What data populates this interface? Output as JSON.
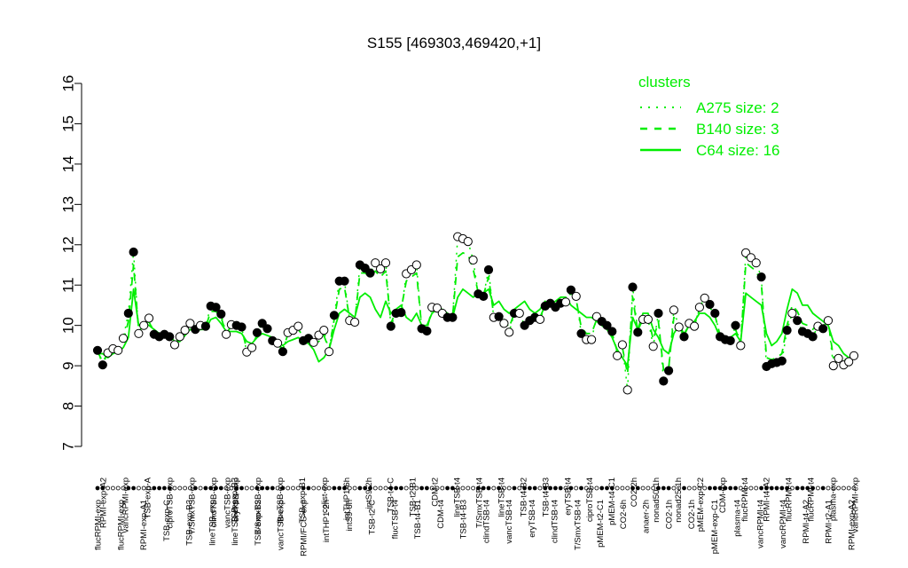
{
  "chart_data": {
    "type": "line",
    "title": "S155 [469303,469420,+1]",
    "xlabel": "",
    "ylabel": "",
    "ylim": [
      7,
      16
    ],
    "yticks": [
      7,
      8,
      9,
      10,
      11,
      12,
      13,
      14,
      15,
      16
    ],
    "grid": false,
    "legend_position": "top-right",
    "legend": {
      "title": "clusters",
      "color": "#00ee00",
      "entries": [
        {
          "label": "A275 size: 2",
          "style": "dotted"
        },
        {
          "label": "B140 size: 3",
          "style": "dashed"
        },
        {
          "label": "C64 size: 16",
          "style": "solid"
        }
      ]
    },
    "x_labels_top": [
      "RPMI-exp-A2",
      "vancRPMI-exp",
      "TSB-exp-A",
      "ciproTSB-exp",
      "T/SmxTSB-exp",
      "clindTSB-exp",
      "eryTSB-exp",
      "T/SmxTSB-exp",
      "flucTSB-exp",
      "TSB-exp-B1",
      "colist-exp",
      "intTHP1-6h",
      "intS9-2h",
      "TSB-t4-C",
      "TSB-t2-B1",
      "CDM-t2",
      "lineTSB-t4",
      "T/SmxTSB-t4",
      "lineTSB-t4",
      "TSB-t4-B2",
      "TSB-t4-B3",
      "eryTSB-t4",
      "ciproTSB-t4",
      "pMEM-t4-C1",
      "CO2-2h",
      "nonad50-1h",
      "nonad25-1h",
      "pMEM-exp-C2",
      "CDM-exp",
      "flucRPMI-t4",
      "RPMI-t4-A2",
      "flucRPMI-t4",
      "flucRPMI-t4",
      "plasma-exp",
      "vancRPMI-exp"
    ],
    "x_labels_bottom": [
      "flucRPMI-exp",
      "flucRPMI-exp",
      "RPMI-exp-A1",
      "TSB-exp-C",
      "TSB-exp-B3",
      "lineTSB-exp",
      "lineTSB-exp",
      "TSB-exp-B2",
      "vancTSB-exp",
      "RPMI/FCS-exp",
      "intTHP1-2h",
      "intS9-6h",
      "TSB-t2-C",
      "flucTSB-t4",
      "TSB-t4-B1",
      "CDM-t4",
      "TSB-t4-B3",
      "clindTSB-t4",
      "vancTSB-t4",
      "eryTSB-t4",
      "clindTSB-t4",
      "T/SmxTSB-t4",
      "pMEM-t2-C1",
      "CO2-6h",
      "anaer-2h",
      "CO2-1h",
      "CO2-1h",
      "pMEM-exp-C1",
      "plasma-t4",
      "vancRPMI-t4",
      "vancRPMI-t4",
      "RPMI-t4-A2",
      "RPMI-t2-A1",
      "RPMI-exp-A2"
    ],
    "x_labels_extra": [
      "vancTSB-exp",
      "TSB-exp-B3"
    ],
    "points_y": [
      9.38,
      9.02,
      9.32,
      9.42,
      9.38,
      9.68,
      10.3,
      11.82,
      9.8,
      10.0,
      10.18,
      9.78,
      9.72,
      9.78,
      9.72,
      9.52,
      9.72,
      9.88,
      10.05,
      9.9,
      10.0,
      9.98,
      10.48,
      10.45,
      10.28,
      9.78,
      10.02,
      10.0,
      9.96,
      9.34,
      9.45,
      9.82,
      10.05,
      9.92,
      9.62,
      9.56,
      9.35,
      9.82,
      9.88,
      9.98,
      9.62,
      9.68,
      9.58,
      9.76,
      9.88,
      9.35,
      10.25,
      11.1,
      11.1,
      10.12,
      10.08,
      11.5,
      11.42,
      11.3,
      11.55,
      11.4,
      11.55,
      9.98,
      10.3,
      10.32,
      11.28,
      11.38,
      11.5,
      9.92,
      9.86,
      10.45,
      10.43,
      10.3,
      10.2,
      10.2,
      12.2,
      12.15,
      12.08,
      11.62,
      10.78,
      10.72,
      11.38,
      10.2,
      10.22,
      10.05,
      9.83,
      10.3,
      10.3,
      10.0,
      10.12,
      10.2,
      10.15,
      10.48,
      10.55,
      10.45,
      10.55,
      10.58,
      10.88,
      10.72,
      9.8,
      9.65,
      9.65,
      10.22,
      10.1,
      10.0,
      9.85,
      9.25,
      9.52,
      8.4,
      10.95,
      9.83,
      10.15,
      10.15,
      9.48,
      10.3,
      8.62,
      8.88,
      10.38,
      9.96,
      9.72,
      10.05,
      9.98,
      10.45,
      10.68,
      10.52,
      10.3,
      9.72,
      9.65,
      9.62,
      10.0,
      9.5,
      11.8,
      11.68,
      11.55,
      11.2,
      8.98,
      9.05,
      9.08,
      9.12,
      9.88,
      10.3,
      10.12,
      9.85,
      9.8,
      9.72,
      9.98,
      9.92,
      10.12,
      9.0,
      9.18,
      9.02,
      9.1,
      9.25
    ],
    "filled": [
      true,
      true,
      false,
      false,
      false,
      false,
      true,
      true,
      false,
      false,
      false,
      true,
      true,
      true,
      true,
      false,
      false,
      false,
      false,
      true,
      false,
      true,
      true,
      true,
      true,
      false,
      false,
      true,
      true,
      false,
      false,
      true,
      true,
      true,
      true,
      false,
      true,
      false,
      false,
      false,
      true,
      true,
      false,
      false,
      false,
      false,
      true,
      true,
      true,
      false,
      false,
      true,
      true,
      true,
      false,
      false,
      false,
      true,
      true,
      true,
      false,
      false,
      false,
      true,
      true,
      false,
      false,
      false,
      true,
      true,
      false,
      false,
      false,
      false,
      true,
      true,
      true,
      false,
      true,
      false,
      false,
      true,
      false,
      true,
      true,
      true,
      false,
      true,
      true,
      true,
      true,
      false,
      true,
      false,
      true,
      false,
      false,
      false,
      true,
      true,
      true,
      false,
      false,
      false,
      true,
      true,
      false,
      false,
      false,
      true,
      true,
      true,
      false,
      false,
      true,
      false,
      false,
      false,
      false,
      true,
      true,
      true,
      true,
      true,
      true,
      false,
      false,
      false,
      false,
      true,
      true,
      true,
      true,
      true,
      true,
      false,
      true,
      true,
      true,
      true,
      false,
      true,
      false,
      false,
      false,
      false,
      false
    ],
    "series": [
      {
        "name": "C64 size: 16",
        "style": "solid",
        "values": [
          9.3,
          9.3,
          9.2,
          9.3,
          9.35,
          9.45,
          9.7,
          10.9,
          10.0,
          10.05,
          10.0,
          9.9,
          9.8,
          9.78,
          9.75,
          9.6,
          9.6,
          9.75,
          9.9,
          9.85,
          9.9,
          9.9,
          10.15,
          10.2,
          10.05,
          9.85,
          9.85,
          9.85,
          9.8,
          9.6,
          9.55,
          9.7,
          9.8,
          9.75,
          9.7,
          9.6,
          9.5,
          9.6,
          9.65,
          9.7,
          9.6,
          9.55,
          9.4,
          9.1,
          9.2,
          9.4,
          9.9,
          10.3,
          10.4,
          10.3,
          10.2,
          10.7,
          10.8,
          10.7,
          10.4,
          10.2,
          10.6,
          10.3,
          10.4,
          10.5,
          10.2,
          10.1,
          10.3,
          10.0,
          10.0,
          10.3,
          10.4,
          10.4,
          10.3,
          10.2,
          10.7,
          10.9,
          10.8,
          10.7,
          10.8,
          10.8,
          10.9,
          10.5,
          10.6,
          10.4,
          10.3,
          10.4,
          10.5,
          10.6,
          10.4,
          10.3,
          10.4,
          10.6,
          10.5,
          10.6,
          10.7,
          10.7,
          10.5,
          10.4,
          10.3,
          10.2,
          10.2,
          10.1,
          10.0,
          9.9,
          9.7,
          9.4,
          9.2,
          9.0,
          10.2,
          9.9,
          10.3,
          10.3,
          9.9,
          9.7,
          9.4,
          9.3,
          9.8,
          10.0,
          9.8,
          10.0,
          10.1,
          10.3,
          10.3,
          10.2,
          10.0,
          9.7,
          9.6,
          9.7,
          9.8,
          9.6,
          10.8,
          10.7,
          10.6,
          10.5,
          9.8,
          9.5,
          9.6,
          9.8,
          10.4,
          10.9,
          10.8,
          10.5,
          10.5,
          10.3,
          10.2,
          10.1,
          10.0,
          9.6,
          9.5,
          9.3,
          9.2,
          9.2
        ]
      },
      {
        "name": "B140 size: 3",
        "style": "dashed",
        "values": [
          9.35,
          9.1,
          9.3,
          9.4,
          9.4,
          9.6,
          10.1,
          11.5,
          9.85,
          10.0,
          10.1,
          9.8,
          9.75,
          9.78,
          9.73,
          9.55,
          9.7,
          9.85,
          10.0,
          9.9,
          9.98,
          9.96,
          10.35,
          10.35,
          10.2,
          9.8,
          9.98,
          9.97,
          9.93,
          9.4,
          9.45,
          9.78,
          9.98,
          9.88,
          9.65,
          9.58,
          9.4,
          9.78,
          9.85,
          9.93,
          9.62,
          9.66,
          9.55,
          9.6,
          9.75,
          9.4,
          10.15,
          10.9,
          10.95,
          10.15,
          10.1,
          11.3,
          11.3,
          11.2,
          11.35,
          11.2,
          11.35,
          10.05,
          10.35,
          10.4,
          11.1,
          11.2,
          11.3,
          9.95,
          9.9,
          10.4,
          10.4,
          10.3,
          10.22,
          10.2,
          11.7,
          11.8,
          11.75,
          11.4,
          10.8,
          10.75,
          11.2,
          10.25,
          10.3,
          10.15,
          9.95,
          10.3,
          10.35,
          10.15,
          10.2,
          10.25,
          10.2,
          10.5,
          10.55,
          10.5,
          10.6,
          10.62,
          10.8,
          10.65,
          9.95,
          9.8,
          9.8,
          10.15,
          10.05,
          9.95,
          9.8,
          9.35,
          9.45,
          8.8,
          10.7,
          9.85,
          10.2,
          10.2,
          9.65,
          10.1,
          8.9,
          8.95,
          10.2,
          9.98,
          9.75,
          10.02,
          10.0,
          10.4,
          10.55,
          10.45,
          10.25,
          9.75,
          9.65,
          9.65,
          9.9,
          9.55,
          11.55,
          11.45,
          11.35,
          11.05,
          9.2,
          9.15,
          9.2,
          9.3,
          10.0,
          10.5,
          10.35,
          10.05,
          10.0,
          9.9,
          10.05,
          9.98,
          10.1,
          9.2,
          9.25,
          9.15,
          9.15,
          9.2
        ]
      },
      {
        "name": "A275 size: 2",
        "style": "dotted",
        "values": [
          9.38,
          9.02,
          9.32,
          9.42,
          9.38,
          9.68,
          10.3,
          11.82,
          9.8,
          10.0,
          10.18,
          9.78,
          9.72,
          9.78,
          9.72,
          9.52,
          9.72,
          9.88,
          10.05,
          9.9,
          10.0,
          9.98,
          10.48,
          10.45,
          10.28,
          9.78,
          10.02,
          10.0,
          9.96,
          9.34,
          9.45,
          9.82,
          10.05,
          9.92,
          9.62,
          9.56,
          9.35,
          9.82,
          9.88,
          9.98,
          9.62,
          9.68,
          9.58,
          9.76,
          9.88,
          9.35,
          10.25,
          11.1,
          11.1,
          10.12,
          10.08,
          11.5,
          11.42,
          11.3,
          11.55,
          11.4,
          11.55,
          9.98,
          10.3,
          10.32,
          11.28,
          11.38,
          11.5,
          9.92,
          9.86,
          10.45,
          10.43,
          10.3,
          10.2,
          10.2,
          12.2,
          12.15,
          12.08,
          11.62,
          10.78,
          10.72,
          11.38,
          10.2,
          10.22,
          10.05,
          9.83,
          10.3,
          10.3,
          10.0,
          10.12,
          10.2,
          10.15,
          10.48,
          10.55,
          10.45,
          10.55,
          10.58,
          10.88,
          10.72,
          9.8,
          9.65,
          9.65,
          10.22,
          10.1,
          10.0,
          9.85,
          9.25,
          9.52,
          8.4,
          10.95,
          9.83,
          10.15,
          10.15,
          9.48,
          10.3,
          8.62,
          8.88,
          10.38,
          9.96,
          9.72,
          10.05,
          9.98,
          10.45,
          10.68,
          10.52,
          10.3,
          9.72,
          9.65,
          9.62,
          10.0,
          9.5,
          11.8,
          11.68,
          11.55,
          11.2,
          8.98,
          9.05,
          9.08,
          9.12,
          9.88,
          10.3,
          10.12,
          9.85,
          9.8,
          9.72,
          9.98,
          9.92,
          10.12,
          9.0,
          9.18,
          9.02,
          9.1,
          9.25
        ]
      }
    ]
  }
}
